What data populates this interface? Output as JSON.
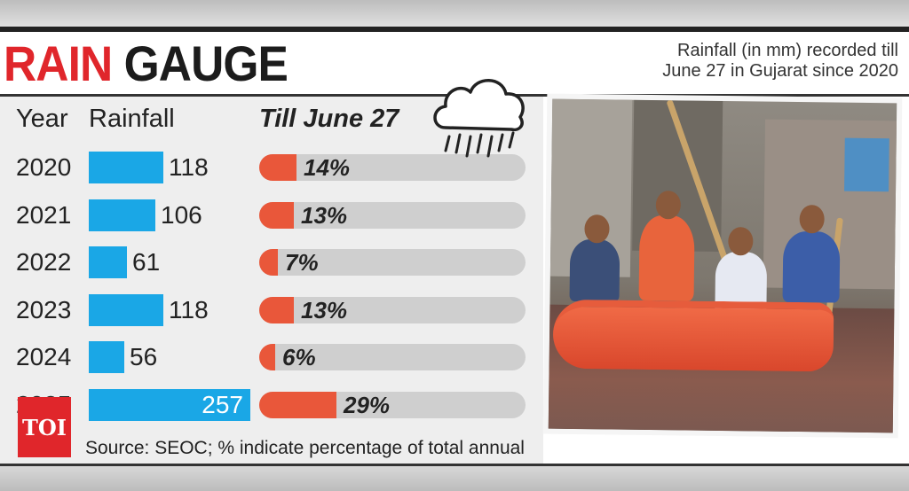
{
  "header": {
    "title_part1": "RAIN",
    "title_part2": "GAUGE",
    "subtitle_line1": "Rainfall (in mm) recorded till",
    "subtitle_line2": "June 27 in Gujarat since 2020"
  },
  "columns": {
    "year": "Year",
    "rainfall": "Rainfall",
    "till": "Till June 27"
  },
  "chart_data": {
    "type": "bar",
    "categories": [
      "2020",
      "2021",
      "2022",
      "2023",
      "2024",
      "2025"
    ],
    "series": [
      {
        "name": "Rainfall",
        "values": [
          118,
          106,
          61,
          118,
          56,
          257
        ]
      },
      {
        "name": "Till June 27",
        "values": [
          14,
          13,
          7,
          13,
          6,
          29
        ]
      }
    ],
    "rain_labels": [
      "118",
      "106",
      "61",
      "118",
      "56",
      "257"
    ],
    "pct_labels": [
      "14%",
      "13%",
      "7%",
      "13%",
      "6%",
      "29%"
    ]
  },
  "footer": {
    "source": "Source: SEOC; % indicate percentage of total annual rainfall"
  },
  "logo": {
    "text": "TOI"
  },
  "colors": {
    "rain_bar": "#1aa7e6",
    "pct_fill": "#e9573a",
    "pct_track": "#cfcfcf",
    "title_red": "#e0262b"
  },
  "icons": {
    "weather": "rain-cloud-icon"
  }
}
